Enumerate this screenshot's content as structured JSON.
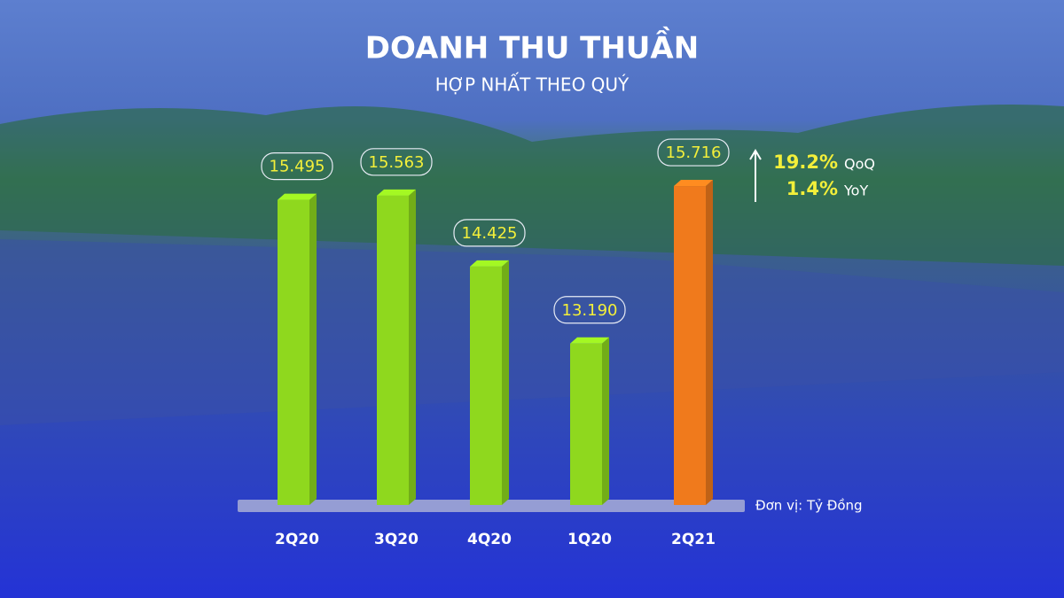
{
  "chart_data": {
    "type": "bar",
    "title": "DOANH THU THUẦN",
    "subtitle": "HỢP NHẤT THEO QUÝ",
    "unit_note": "Đơn vị: Tỷ Đồng",
    "categories": [
      "2Q20",
      "3Q20",
      "4Q20",
      "1Q20",
      "2Q21"
    ],
    "values": [
      15495,
      15563,
      14425,
      13190,
      15716
    ],
    "value_labels": [
      "15.495",
      "15.563",
      "14.425",
      "13.190",
      "15.716"
    ],
    "colors": [
      "#8fd81e",
      "#8fd81e",
      "#8fd81e",
      "#8fd81e",
      "#f07a1c"
    ],
    "ylim": [
      10600,
      16200
    ],
    "growth": [
      {
        "value": "19.2%",
        "label": "QoQ"
      },
      {
        "value": "1.4%",
        "label": "YoY"
      }
    ]
  }
}
